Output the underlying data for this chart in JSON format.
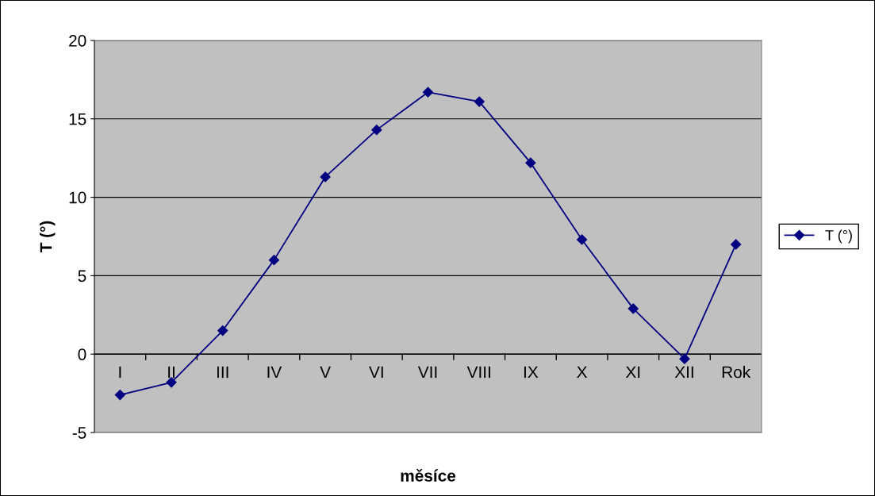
{
  "chart_data": {
    "type": "line",
    "xlabel": "měsíce",
    "ylabel": "T (°)",
    "categories": [
      "I",
      "II",
      "III",
      "IV",
      "V",
      "VI",
      "VII",
      "VIII",
      "IX",
      "X",
      "XI",
      "XII",
      "Rok"
    ],
    "series": [
      {
        "name": "T (°)",
        "color": "#000080",
        "values": [
          -2.6,
          -1.8,
          1.5,
          6.0,
          11.3,
          14.3,
          16.7,
          16.1,
          12.2,
          7.3,
          2.9,
          -0.3,
          7.0
        ]
      }
    ],
    "ylim": [
      -5,
      20
    ],
    "yticks": [
      -5,
      0,
      5,
      10,
      15,
      20
    ],
    "grid": "y",
    "legend": "right",
    "marker": "diamond",
    "line_style": "solid"
  }
}
